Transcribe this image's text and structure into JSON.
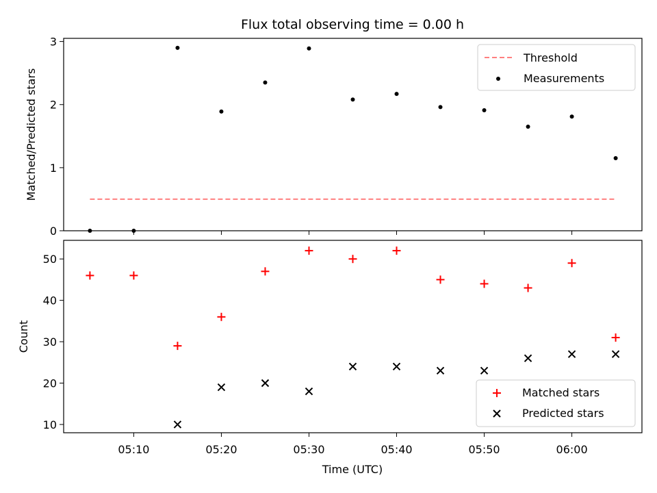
{
  "chart_data": [
    {
      "type": "scatter",
      "title": "Flux total observing time = 0.00 h",
      "xlabel": "",
      "ylabel": "Matched/Predicted stars",
      "ylim": [
        0,
        3.05
      ],
      "yticks": [
        0,
        1,
        2,
        3
      ],
      "legend": {
        "placement": "top-right",
        "entries": [
          "Threshold",
          "Measurements"
        ]
      },
      "threshold": {
        "name": "Threshold",
        "value": 0.5,
        "x_start": "05:05",
        "x_end": "06:05",
        "color": "#ff7f7f"
      },
      "series": [
        {
          "name": "Measurements",
          "color": "#000000",
          "x": [
            "05:05",
            "05:10",
            "05:15",
            "05:20",
            "05:25",
            "05:30",
            "05:35",
            "05:40",
            "05:45",
            "05:50",
            "05:55",
            "06:00",
            "06:05"
          ],
          "values": [
            0.0,
            0.0,
            2.9,
            1.89,
            2.35,
            2.89,
            2.08,
            2.17,
            1.96,
            1.91,
            1.65,
            1.81,
            1.15
          ]
        }
      ]
    },
    {
      "type": "scatter",
      "title": "",
      "xlabel": "Time (UTC)",
      "ylabel": "Count",
      "ylim": [
        8,
        54.5
      ],
      "yticks": [
        10,
        20,
        30,
        40,
        50
      ],
      "xticks": [
        "05:10",
        "05:20",
        "05:30",
        "05:40",
        "05:50",
        "06:00"
      ],
      "legend": {
        "placement": "bottom-right",
        "entries": [
          "Matched stars",
          "Predicted stars"
        ]
      },
      "series": [
        {
          "name": "Matched stars",
          "marker": "plus",
          "color": "#ff0000",
          "x": [
            "05:05",
            "05:10",
            "05:15",
            "05:20",
            "05:25",
            "05:30",
            "05:35",
            "05:40",
            "05:45",
            "05:50",
            "05:55",
            "06:00",
            "06:05"
          ],
          "values": [
            46,
            46,
            29,
            36,
            47,
            52,
            50,
            52,
            45,
            44,
            43,
            49,
            31
          ]
        },
        {
          "name": "Predicted stars",
          "marker": "x",
          "color": "#000000",
          "x": [
            "05:15",
            "05:20",
            "05:25",
            "05:30",
            "05:35",
            "05:40",
            "05:45",
            "05:50",
            "05:55",
            "06:00",
            "06:05"
          ],
          "values": [
            10,
            19,
            20,
            18,
            24,
            24,
            23,
            23,
            26,
            27,
            27
          ]
        }
      ]
    }
  ]
}
